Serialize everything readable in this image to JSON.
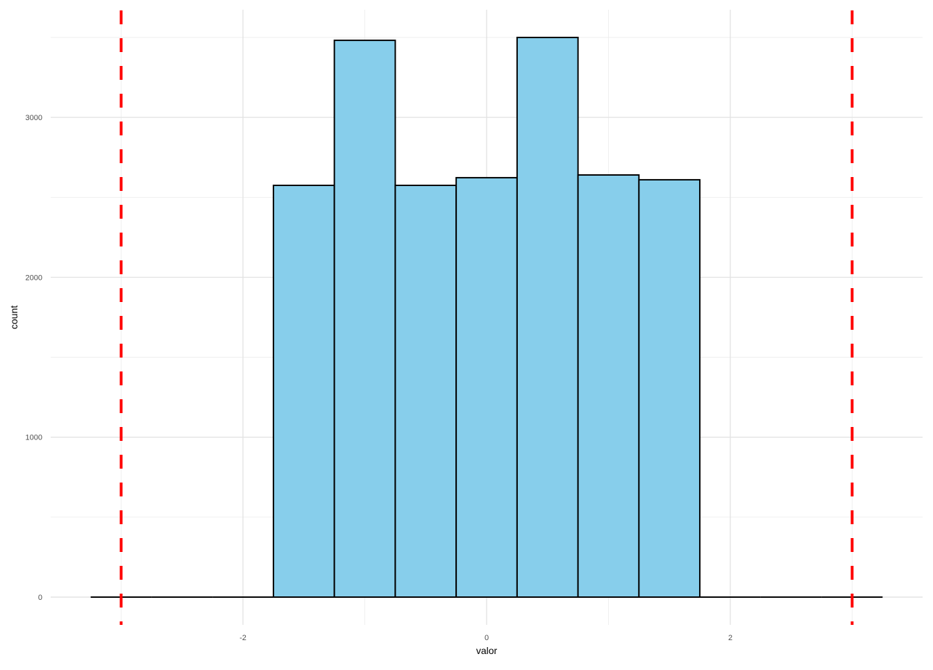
{
  "chart_data": {
    "type": "bar",
    "subtype": "histogram",
    "title": "",
    "xlabel": "valor",
    "ylabel": "count",
    "bin_width": 0.5,
    "bins": [
      {
        "x": -3.0,
        "count": 0
      },
      {
        "x": -2.5,
        "count": 0
      },
      {
        "x": -2.0,
        "count": 0
      },
      {
        "x": -1.5,
        "count": 2575
      },
      {
        "x": -1.0,
        "count": 3482
      },
      {
        "x": -0.5,
        "count": 2575
      },
      {
        "x": 0.0,
        "count": 2623
      },
      {
        "x": 0.5,
        "count": 3500
      },
      {
        "x": 1.0,
        "count": 2640
      },
      {
        "x": 1.5,
        "count": 2610
      },
      {
        "x": 2.0,
        "count": 0
      },
      {
        "x": 2.5,
        "count": 0
      },
      {
        "x": 3.0,
        "count": 0
      }
    ],
    "xlim": [
      -3.5,
      3.6
    ],
    "ylim": [
      -175,
      3675
    ],
    "x_ticks": [
      -2,
      0,
      2
    ],
    "x_tick_labels": [
      "-2",
      "0",
      "2"
    ],
    "y_ticks": [
      0,
      1000,
      2000,
      3000
    ],
    "y_tick_labels": [
      "0",
      "1000",
      "2000",
      "3000"
    ],
    "vlines": [
      {
        "x": -3,
        "color": "#ff0000",
        "style": "dashed"
      },
      {
        "x": 3,
        "color": "#ff0000",
        "style": "dashed"
      }
    ],
    "grid": true,
    "fill_color": "#87ceeb",
    "outline_color": "#000000"
  }
}
